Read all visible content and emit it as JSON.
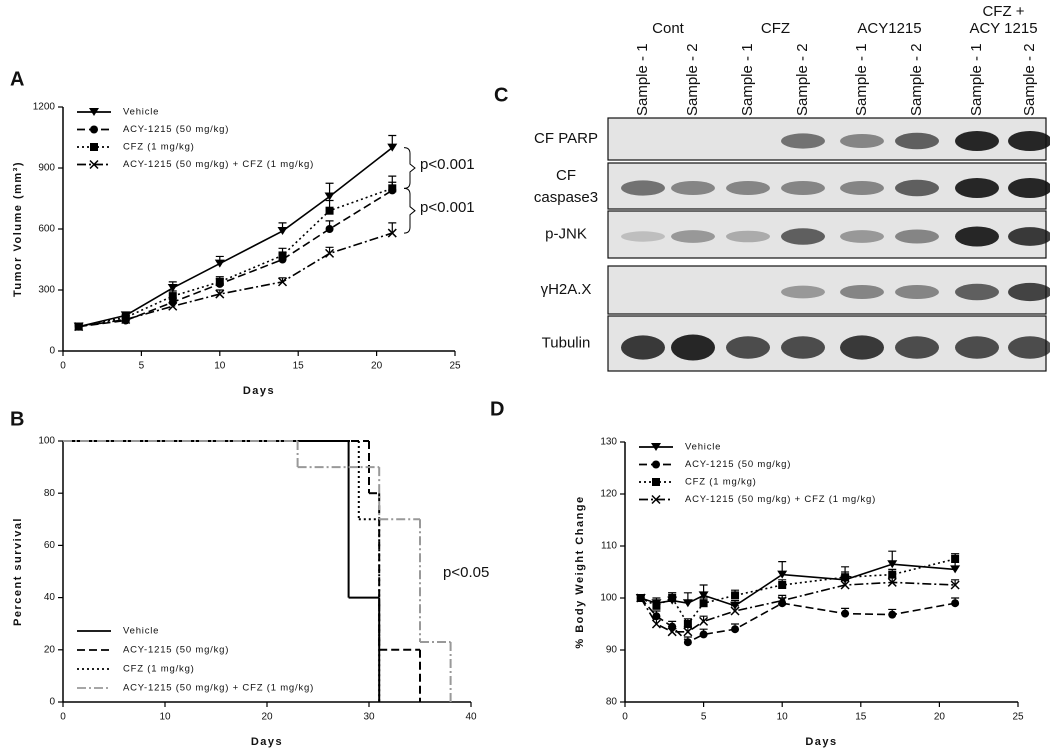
{
  "chart_data": [
    {
      "type": "line",
      "label": "A",
      "xlabel": "Days",
      "ylabel": "Tumor Volume (mm³)",
      "x": [
        1,
        4,
        7,
        10,
        14,
        17,
        21
      ],
      "xlim": [
        0,
        25
      ],
      "xticks": [
        0,
        5,
        10,
        15,
        20,
        25
      ],
      "ylim": [
        0,
        1200
      ],
      "yticks": [
        0,
        300,
        600,
        900,
        1200
      ],
      "legend": "upper left",
      "annotations": [
        "p<0.001",
        "p<0.001"
      ],
      "series": [
        {
          "name": "Vehicle",
          "color": "#000000",
          "marker": "triangle-down",
          "dash": "solid",
          "values": [
            120,
            175,
            310,
            430,
            590,
            760,
            1000
          ],
          "errors": [
            8,
            15,
            30,
            35,
            40,
            65,
            60
          ]
        },
        {
          "name": "ACY-1215 (50 mg/kg)",
          "color": "#000000",
          "marker": "circle",
          "dash": "dashed",
          "values": [
            120,
            150,
            240,
            330,
            450,
            600,
            790
          ],
          "errors": [
            8,
            10,
            20,
            25,
            30,
            40,
            40
          ]
        },
        {
          "name": "CFZ (1 mg/kg)",
          "color": "#000000",
          "marker": "square",
          "dash": "dotted",
          "values": [
            120,
            165,
            270,
            340,
            470,
            690,
            800
          ],
          "errors": [
            8,
            12,
            25,
            25,
            35,
            50,
            60
          ]
        },
        {
          "name": "ACY-1215 (50 mg/kg) + CFZ (1 mg/kg)",
          "color": "#000000",
          "marker": "x",
          "dash": "dashdot",
          "values": [
            120,
            155,
            220,
            280,
            340,
            480,
            580
          ],
          "errors": [
            8,
            10,
            15,
            20,
            20,
            30,
            50
          ]
        }
      ]
    },
    {
      "type": "step",
      "label": "B",
      "xlabel": "Days",
      "ylabel": "Percent survival",
      "xlim": [
        0,
        40
      ],
      "xticks": [
        0,
        10,
        20,
        30,
        40
      ],
      "ylim": [
        0,
        100
      ],
      "yticks": [
        0,
        20,
        40,
        60,
        80,
        100
      ],
      "legend": "lower left",
      "annotations": [
        "p<0.05"
      ],
      "series": [
        {
          "name": "Vehicle",
          "color": "#000000",
          "dash": "solid",
          "x": [
            0,
            28,
            31
          ],
          "values": [
            100,
            40,
            0
          ]
        },
        {
          "name": "ACY-1215 (50 mg/kg)",
          "color": "#000000",
          "dash": "dashed",
          "x": [
            0,
            30,
            31,
            35
          ],
          "values": [
            100,
            80,
            20,
            0
          ]
        },
        {
          "name": "CFZ (1 mg/kg)",
          "color": "#000000",
          "dash": "dotted",
          "x": [
            0,
            29,
            31
          ],
          "values": [
            100,
            70,
            0
          ]
        },
        {
          "name": "ACY-1215 (50 mg/kg) + CFZ (1 mg/kg)",
          "color": "#999999",
          "dash": "dashdot",
          "x": [
            0,
            23,
            31,
            35,
            38
          ],
          "values": [
            100,
            90,
            70,
            23,
            0
          ]
        }
      ]
    },
    {
      "type": "line",
      "label": "D",
      "xlabel": "Days",
      "ylabel": "% Body Weight Change",
      "x": [
        1,
        2,
        3,
        4,
        5,
        7,
        10,
        14,
        17,
        21
      ],
      "xlim": [
        0,
        25
      ],
      "xticks": [
        0,
        5,
        10,
        15,
        20,
        25
      ],
      "ylim": [
        80,
        130
      ],
      "yticks": [
        80,
        90,
        100,
        110,
        120,
        130
      ],
      "legend": "upper left",
      "series": [
        {
          "name": "Vehicle",
          "color": "#000000",
          "marker": "triangle-down",
          "dash": "solid",
          "values": [
            100,
            99,
            99.5,
            99,
            100.5,
            98.5,
            104.5,
            103.5,
            106.5,
            105.5
          ],
          "errors": [
            0.5,
            1,
            1.5,
            2,
            2,
            1,
            2.5,
            2.5,
            2.5,
            3
          ]
        },
        {
          "name": "ACY-1215 (50 mg/kg)",
          "color": "#000000",
          "marker": "circle",
          "dash": "dashed",
          "values": [
            100,
            96.5,
            94.5,
            91.5,
            93,
            94,
            99,
            97,
            96.8,
            99
          ],
          "errors": [
            0.5,
            1,
            1,
            1,
            1,
            1,
            1,
            1,
            1,
            1
          ]
        },
        {
          "name": "CFZ (1 mg/kg)",
          "color": "#000000",
          "marker": "square",
          "dash": "dotted",
          "values": [
            100,
            98.5,
            100,
            95,
            99,
            100.5,
            102.5,
            104,
            104.5,
            107.5
          ],
          "errors": [
            0.5,
            1,
            1,
            1,
            1,
            1,
            1,
            1,
            1,
            1
          ]
        },
        {
          "name": "ACY-1215 (50 mg/kg) + CFZ (1 mg/kg)",
          "color": "#000000",
          "marker": "x",
          "dash": "dashdot",
          "values": [
            100,
            95,
            93.5,
            93.5,
            95.5,
            97.5,
            99.5,
            102.5,
            103,
            102.5
          ],
          "errors": [
            0.5,
            1,
            1,
            1,
            1,
            1,
            1,
            1,
            1,
            1
          ]
        }
      ]
    }
  ],
  "blot": {
    "label": "C",
    "groups": [
      {
        "name": [
          "Cont"
        ],
        "samples": [
          "Sample - 1",
          "Sample - 2"
        ]
      },
      {
        "name": [
          "CFZ"
        ],
        "samples": [
          "Sample - 1",
          "Sample - 2"
        ]
      },
      {
        "name": [
          "ACY1215"
        ],
        "samples": [
          "Sample - 1",
          "Sample - 2"
        ]
      },
      {
        "name": [
          "CFZ +",
          "ACY 1215"
        ],
        "samples": [
          "Sample - 1",
          "Sample - 2"
        ]
      }
    ],
    "rows": [
      [
        "CF PARP"
      ],
      [
        "CF",
        "caspase3"
      ],
      [
        "p-JNK"
      ],
      [
        "γH2A.X"
      ],
      [
        "Tubulin"
      ]
    ]
  }
}
